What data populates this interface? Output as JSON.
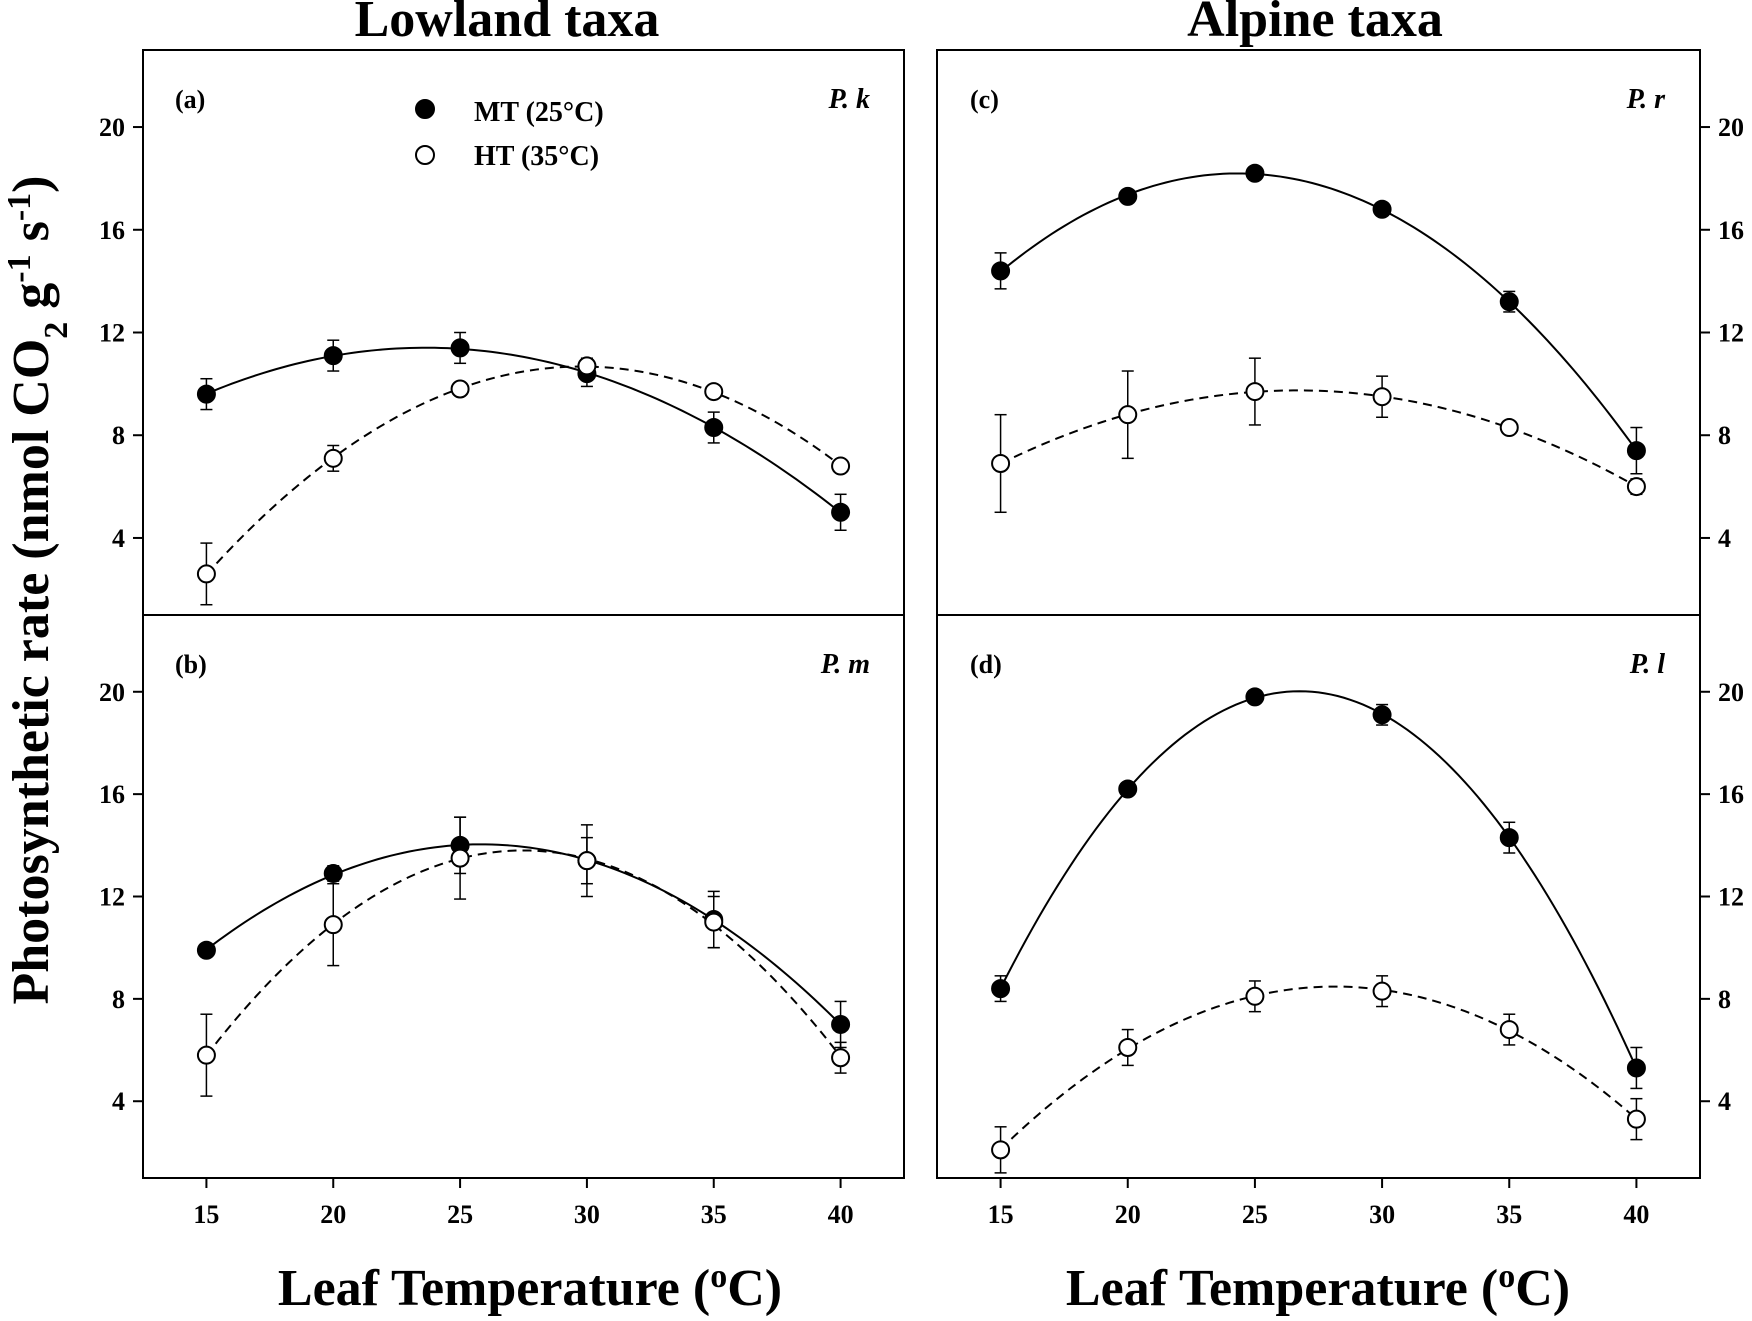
{
  "figure": {
    "column_titles": [
      "Lowland taxa",
      "Alpine taxa"
    ],
    "ylabel": {
      "main": "Photosynthetic rate (nmol CO",
      "sub": "2",
      "mid1": " g",
      "sup1": "-1",
      "mid2": " s",
      "sup2": "-1",
      "end": ")"
    },
    "xlabel": {
      "main": "Leaf Temperature (",
      "sup": "o",
      "end": "C)"
    },
    "legend": {
      "mt": "MT (25°C)",
      "ht": "HT (35°C)"
    }
  },
  "chart_data": [
    {
      "type": "scatter",
      "panel": "(a)",
      "species": "P. k",
      "x": [
        15,
        20,
        25,
        30,
        35,
        40
      ],
      "xticks": [
        "15",
        "20",
        "25",
        "30",
        "35",
        "40"
      ],
      "yticks": [
        "4",
        "8",
        "12",
        "16",
        "20"
      ],
      "xlim": [
        12.5,
        42.5
      ],
      "ylim": [
        1,
        23
      ],
      "series": [
        {
          "name": "MT (25°C)",
          "marker": "filled",
          "line": "solid",
          "values": [
            9.6,
            11.1,
            11.4,
            10.4,
            8.3,
            5.0
          ],
          "errors": [
            0.6,
            0.6,
            0.6,
            0.5,
            0.6,
            0.7
          ]
        },
        {
          "name": "HT (35°C)",
          "marker": "open",
          "line": "dashed",
          "values": [
            2.6,
            7.1,
            9.8,
            10.7,
            9.7,
            6.8
          ],
          "errors": [
            1.2,
            0.5,
            0.2,
            0.3,
            0.2,
            0.2
          ]
        }
      ]
    },
    {
      "type": "scatter",
      "panel": "(b)",
      "species": "P. m",
      "x": [
        15,
        20,
        25,
        30,
        35,
        40
      ],
      "xticks": [
        "15",
        "20",
        "25",
        "30",
        "35",
        "40"
      ],
      "yticks": [
        "4",
        "8",
        "12",
        "16",
        "20"
      ],
      "xlim": [
        12.5,
        42.5
      ],
      "ylim": [
        1,
        23
      ],
      "series": [
        {
          "name": "MT (25°C)",
          "marker": "filled",
          "line": "solid",
          "values": [
            9.9,
            12.9,
            14.0,
            13.4,
            11.1,
            7.0
          ],
          "errors": [
            0.2,
            0.3,
            1.1,
            0.9,
            1.1,
            0.9
          ]
        },
        {
          "name": "HT (35°C)",
          "marker": "open",
          "line": "dashed",
          "values": [
            5.8,
            10.9,
            13.5,
            13.4,
            11.0,
            5.7
          ],
          "errors": [
            1.6,
            1.6,
            1.6,
            1.4,
            1.0,
            0.6
          ]
        }
      ]
    },
    {
      "type": "scatter",
      "panel": "(c)",
      "species": "P. r",
      "x": [
        15,
        20,
        25,
        30,
        35,
        40
      ],
      "xticks": [
        "15",
        "20",
        "25",
        "30",
        "35",
        "40"
      ],
      "yticks": [
        "4",
        "8",
        "12",
        "16",
        "20"
      ],
      "xlim": [
        12.5,
        42.5
      ],
      "ylim": [
        1,
        23
      ],
      "series": [
        {
          "name": "MT (25°C)",
          "marker": "filled",
          "line": "solid",
          "values": [
            14.4,
            17.3,
            18.2,
            16.8,
            13.2,
            7.4
          ],
          "errors": [
            0.7,
            0.2,
            0.2,
            0.2,
            0.4,
            0.9
          ]
        },
        {
          "name": "HT (35°C)",
          "marker": "open",
          "line": "dashed",
          "values": [
            6.9,
            8.8,
            9.7,
            9.5,
            8.3,
            6.0
          ],
          "errors": [
            1.9,
            1.7,
            1.3,
            0.8,
            0.2,
            0.3
          ]
        }
      ]
    },
    {
      "type": "scatter",
      "panel": "(d)",
      "species": "P. l",
      "x": [
        15,
        20,
        25,
        30,
        35,
        40
      ],
      "xticks": [
        "15",
        "20",
        "25",
        "30",
        "35",
        "40"
      ],
      "yticks": [
        "4",
        "8",
        "12",
        "16",
        "20"
      ],
      "xlim": [
        12.5,
        42.5
      ],
      "ylim": [
        1,
        23
      ],
      "series": [
        {
          "name": "MT (25°C)",
          "marker": "filled",
          "line": "solid",
          "values": [
            8.4,
            16.2,
            19.8,
            19.1,
            14.3,
            5.3
          ],
          "errors": [
            0.5,
            0.2,
            0.2,
            0.4,
            0.6,
            0.8
          ]
        },
        {
          "name": "HT (35°C)",
          "marker": "open",
          "line": "dashed",
          "values": [
            2.1,
            6.1,
            8.1,
            8.3,
            6.8,
            3.3
          ],
          "errors": [
            0.9,
            0.7,
            0.6,
            0.6,
            0.6,
            0.8
          ]
        }
      ]
    }
  ]
}
